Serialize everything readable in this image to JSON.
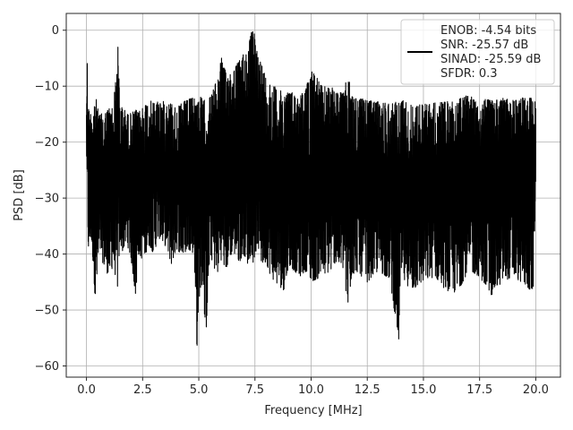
{
  "chart_data": {
    "type": "line",
    "title": "",
    "xlabel": "Frequency [MHz]",
    "ylabel": "PSD [dB]",
    "xlim": [
      -0.9,
      21.1
    ],
    "ylim": [
      -62,
      3
    ],
    "xticks": [
      0.0,
      2.5,
      5.0,
      7.5,
      10.0,
      12.5,
      15.0,
      17.5,
      20.0
    ],
    "xtick_labels": [
      "0.0",
      "2.5",
      "5.0",
      "7.5",
      "10.0",
      "12.5",
      "15.0",
      "17.5",
      "20.0"
    ],
    "yticks": [
      0,
      -10,
      -20,
      -30,
      -40,
      -50,
      -60
    ],
    "ytick_labels": [
      "0",
      "−10",
      "−20",
      "−30",
      "−40",
      "−50",
      "−60"
    ],
    "grid": true,
    "legend_position": "top-right",
    "legend_lines": [
      "ENOB: -4.54 bits",
      "SNR: -25.57 dB",
      "SINAD: -25.59 dB",
      "SFDR: 0.3"
    ],
    "line_color": "#000000",
    "series": [
      {
        "name": "ENOB: -4.54 bits\nSNR: -25.57 dB\nSINAD: -25.59 dB\nSFDR: 0.3",
        "x": [
          0.0,
          0.03,
          0.06,
          0.1,
          0.15,
          0.2,
          0.3,
          0.4,
          0.5,
          0.6,
          0.8,
          1.0,
          1.2,
          1.4,
          1.45,
          1.5,
          1.6,
          1.8,
          2.0,
          2.2,
          2.3,
          2.5,
          2.8,
          3.0,
          3.2,
          3.5,
          3.8,
          4.0,
          4.3,
          4.5,
          4.8,
          4.9,
          5.0,
          5.2,
          5.3,
          5.5,
          5.8,
          6.0,
          6.2,
          6.5,
          6.8,
          7.0,
          7.2,
          7.35,
          7.45,
          7.6,
          7.8,
          8.0,
          8.2,
          8.5,
          8.8,
          9.0,
          9.5,
          9.8,
          10.0,
          10.5,
          10.9,
          11.0,
          11.5,
          11.6,
          11.8,
          12.0,
          12.5,
          13.0,
          13.5,
          13.9,
          14.0,
          14.5,
          15.0,
          15.5,
          16.0,
          16.5,
          17.0,
          17.5,
          18.0,
          18.5,
          19.0,
          19.5,
          19.9,
          20.0
        ],
        "upper": [
          -13.5,
          -4.2,
          -10.5,
          -13.8,
          -15.0,
          -14.5,
          -13.0,
          -11.5,
          -14.0,
          -15.0,
          -14.8,
          -13.8,
          -13.5,
          -3.0,
          -8.0,
          -14.5,
          -13.5,
          -15.0,
          -14.8,
          -14.2,
          -14.8,
          -13.5,
          -12.5,
          -13.0,
          -12.5,
          -12.8,
          -13.0,
          -14.0,
          -12.8,
          -12.5,
          -11.8,
          -12.5,
          -11.5,
          -12.5,
          -12.5,
          -12.0,
          -9.0,
          -4.8,
          -7.5,
          -7.0,
          -5.5,
          -4.0,
          -3.0,
          -0.2,
          -0.2,
          -3.5,
          -6.0,
          -8.5,
          -9.5,
          -10.5,
          -11.2,
          -10.8,
          -11.8,
          -10.0,
          -6.5,
          -10.2,
          -9.8,
          -11.0,
          -11.2,
          -6.8,
          -11.5,
          -12.0,
          -12.5,
          -12.8,
          -13.0,
          -12.8,
          -12.2,
          -13.5,
          -13.2,
          -13.0,
          -12.8,
          -12.5,
          -11.5,
          -12.2,
          -12.5,
          -12.0,
          -12.5,
          -12.0,
          -11.8,
          -12.5
        ],
        "lower": [
          -21.0,
          -33.0,
          -37.0,
          -41.0,
          -38.5,
          -37.0,
          -42.0,
          -49.0,
          -44.0,
          -40.0,
          -42.5,
          -44.0,
          -42.0,
          -46.5,
          -41.0,
          -38.0,
          -39.5,
          -38.0,
          -41.5,
          -48.0,
          -40.0,
          -41.0,
          -38.5,
          -40.0,
          -37.0,
          -38.5,
          -42.0,
          -39.0,
          -40.5,
          -39.0,
          -40.0,
          -59.0,
          -48.0,
          -45.0,
          -56.0,
          -40.0,
          -44.0,
          -41.0,
          -43.0,
          -39.5,
          -41.5,
          -40.0,
          -42.0,
          -39.5,
          -42.5,
          -38.0,
          -42.0,
          -41.5,
          -44.0,
          -45.5,
          -46.5,
          -42.0,
          -44.0,
          -43.0,
          -45.0,
          -44.0,
          -43.0,
          -41.5,
          -43.0,
          -52.0,
          -44.0,
          -43.0,
          -45.0,
          -43.0,
          -44.5,
          -55.5,
          -44.5,
          -46.5,
          -45.0,
          -44.0,
          -46.5,
          -47.0,
          -43.0,
          -44.0,
          -47.5,
          -45.0,
          -44.0,
          -45.5,
          -47.0,
          -26.0
        ]
      }
    ]
  }
}
